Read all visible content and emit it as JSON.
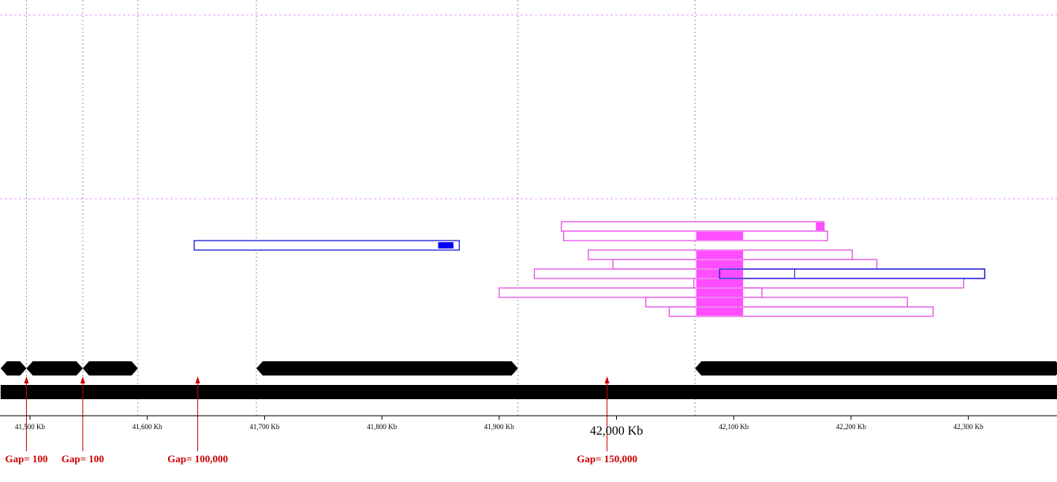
{
  "axis": {
    "unit": "Kb",
    "ticks": [
      {
        "value": 41500,
        "label": "41,500 Kb"
      },
      {
        "value": 41600,
        "label": "41,600 Kb"
      },
      {
        "value": 41700,
        "label": "41,700 Kb"
      },
      {
        "value": 41800,
        "label": "41,800 Kb"
      },
      {
        "value": 41900,
        "label": "41,900 Kb"
      },
      {
        "value": 42000,
        "label": "42,000 Kb",
        "emphasis": true
      },
      {
        "value": 42100,
        "label": "42,100 Kb"
      },
      {
        "value": 42200,
        "label": "42,200 Kb"
      },
      {
        "value": 42300,
        "label": "42,300 Kb"
      }
    ]
  },
  "colors": {
    "contig": "#000000",
    "gap_marker": "#cc0000",
    "blue_feature": "#1a1adb",
    "blue_fill": "#0000ff",
    "magenta_feature": "#e64ee6",
    "magenta_fill": "#ff4dff",
    "guide_line": "#999999",
    "row_divider": "#e0a0ff"
  },
  "contigs": [
    {
      "start": 41475,
      "end": 41497
    },
    {
      "start": 41497,
      "end": 41545
    },
    {
      "start": 41545,
      "end": 41592
    },
    {
      "start": 41693,
      "end": 41916
    },
    {
      "start": 42067,
      "end": 42380
    }
  ],
  "scaffold": {
    "start": 41475,
    "end": 42380
  },
  "gaps": [
    {
      "position": 41497,
      "label": "Gap= 100"
    },
    {
      "position": 41545,
      "label": "Gap= 100"
    },
    {
      "position": 41643,
      "label": "Gap= 100,000"
    },
    {
      "position": 41992,
      "label": "Gap= 150,000"
    }
  ],
  "guide_lines": [
    41497,
    41545,
    41592,
    41693,
    41916,
    42067
  ],
  "blue_alignments": [
    {
      "start": 41640,
      "end": 41866,
      "fill_start": 41848,
      "fill_end": 41861
    },
    {
      "start": 42088,
      "end": 42314,
      "split": 42152
    }
  ],
  "magenta_alignments": [
    {
      "start": 41953,
      "end": 42177,
      "fill_start": 42170,
      "fill_end": 42177
    },
    {
      "start": 41955,
      "end": 42180,
      "fill_start": 42068,
      "fill_end": 42108
    },
    {
      "start": 41976,
      "end": 42201,
      "fill_start": 42068,
      "fill_end": 42108
    },
    {
      "start": 41997,
      "end": 42222,
      "fill_start": 42068,
      "fill_end": 42108
    },
    {
      "start": 41930,
      "end": 42088,
      "fill_start": 42068,
      "fill_end": 42108
    },
    {
      "start": 42066,
      "end": 42296,
      "fill_start": 42068,
      "fill_end": 42108
    },
    {
      "start": 41900,
      "end": 42124,
      "fill_start": 42068,
      "fill_end": 42108
    },
    {
      "start": 42025,
      "end": 42248,
      "fill_start": 42068,
      "fill_end": 42108
    },
    {
      "start": 42045,
      "end": 42270,
      "fill_start": 42068,
      "fill_end": 42108
    }
  ]
}
